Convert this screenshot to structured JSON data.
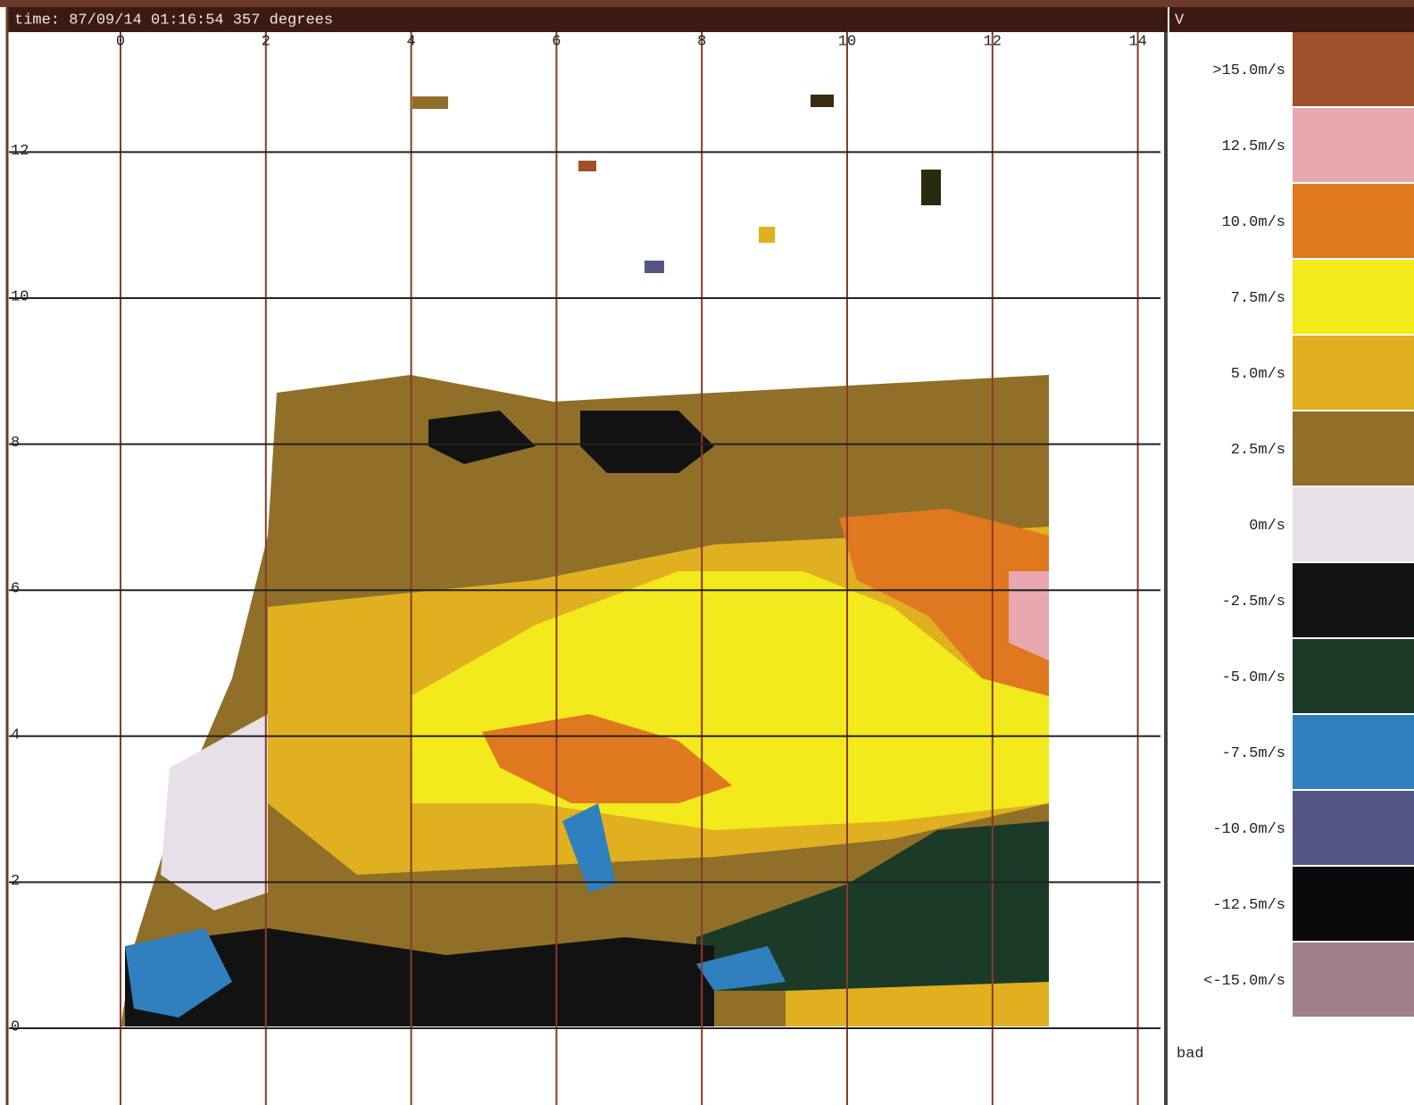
{
  "header": {
    "title": "time: 87/09/14 01:16:54 357 degrees",
    "panel": "V"
  },
  "plot": {
    "xticks": [
      0,
      2,
      4,
      6,
      8,
      10,
      12,
      14
    ],
    "yticks": [
      0,
      2,
      4,
      6,
      8,
      10,
      12
    ]
  },
  "legend": {
    "items": [
      {
        "label": ">15.0m/s",
        "color": "#a0502a"
      },
      {
        "label": "12.5m/s",
        "color": "#e8a8b0"
      },
      {
        "label": "10.0m/s",
        "color": "#e07820"
      },
      {
        "label": "7.5m/s",
        "color": "#f2ea1c"
      },
      {
        "label": "5.0m/s",
        "color": "#e0b020"
      },
      {
        "label": "2.5m/s",
        "color": "#907028"
      },
      {
        "label": "0m/s",
        "color": "#e8e0e8"
      },
      {
        "label": "-2.5m/s",
        "color": "#121212"
      },
      {
        "label": "-5.0m/s",
        "color": "#1c3a28"
      },
      {
        "label": "-7.5m/s",
        "color": "#3080c0"
      },
      {
        "label": "-10.0m/s",
        "color": "#545684"
      },
      {
        "label": "-12.5m/s",
        "color": "#0a0808"
      },
      {
        "label": "<-15.0m/s",
        "color": "#a08088"
      }
    ],
    "bad": "bad"
  }
}
